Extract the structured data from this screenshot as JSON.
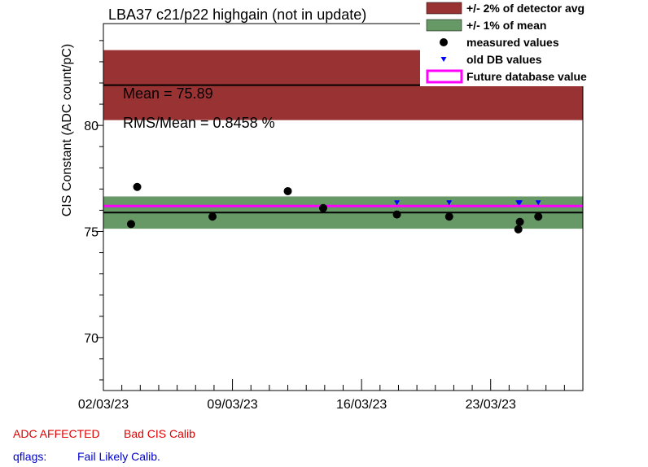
{
  "chart_data": {
    "type": "scatter",
    "title": "LBA37 c21/p22 highgain (not in update)",
    "ylabel": "CIS Constant (ADC count/pC)",
    "xlabel": "",
    "xlim": [
      "2023-03-02T00:00",
      "2023-03-28T00:00"
    ],
    "ylim": [
      67.5,
      84.8
    ],
    "xticks": [
      {
        "date": "2023-03-02",
        "label": "02/03/23"
      },
      {
        "date": "2023-03-09",
        "label": "09/03/23"
      },
      {
        "date": "2023-03-16",
        "label": "16/03/23"
      },
      {
        "date": "2023-03-23",
        "label": "23/03/23"
      }
    ],
    "yticks": [
      70,
      75,
      80
    ],
    "grid": false,
    "legend_position": "top-right",
    "legend": [
      {
        "key": "det_band",
        "label": "+/- 2% of detector avg",
        "color": "#993333"
      },
      {
        "key": "mean_band",
        "label": "+/- 1% of mean",
        "color": "#669966"
      },
      {
        "key": "measured",
        "label": "measured values",
        "color": "#000000"
      },
      {
        "key": "olddb",
        "label": "old DB values",
        "color": "#0000ff"
      },
      {
        "key": "future",
        "label": "Future database value",
        "color": "#ff00ff"
      }
    ],
    "detector_band": {
      "y_low": 80.25,
      "y_high": 83.55,
      "center": 81.9,
      "x_end": "2023-03-28T00:00"
    },
    "mean_band": {
      "y_low": 75.13,
      "y_high": 76.65
    },
    "mean_line": 75.89,
    "future_value": 76.2,
    "series": [
      {
        "name": "measured values",
        "x": [
          "2023-03-03T12:00",
          "2023-03-03T20:00",
          "2023-03-07T22:00",
          "2023-03-12T00:00",
          "2023-03-13T22:00",
          "2023-03-17T22:00",
          "2023-03-20T18:00",
          "2023-03-24T12:00",
          "2023-03-24T14:00",
          "2023-03-25T14:00"
        ],
        "y": [
          75.35,
          77.1,
          75.7,
          76.9,
          76.1,
          75.8,
          75.7,
          75.1,
          75.45,
          75.7
        ]
      },
      {
        "name": "old DB values",
        "x": [
          "2023-03-17T22:00",
          "2023-03-20T18:00",
          "2023-03-24T12:00",
          "2023-03-24T14:00",
          "2023-03-25T14:00"
        ],
        "y": [
          76.35,
          76.35,
          76.35,
          76.35,
          76.35
        ]
      }
    ],
    "stats": {
      "mean_text": "Mean = 75.89",
      "rms_text": "RMS/Mean = 0.8458 %"
    }
  },
  "colors": {
    "flag_red": "#e00000",
    "flag_blue": "#0000cc"
  },
  "footer": {
    "adc_affected": "ADC AFFECTED",
    "bad_cis": "Bad CIS Calib",
    "qflags_label": "qflags:",
    "qflags_value": "Fail Likely Calib."
  }
}
